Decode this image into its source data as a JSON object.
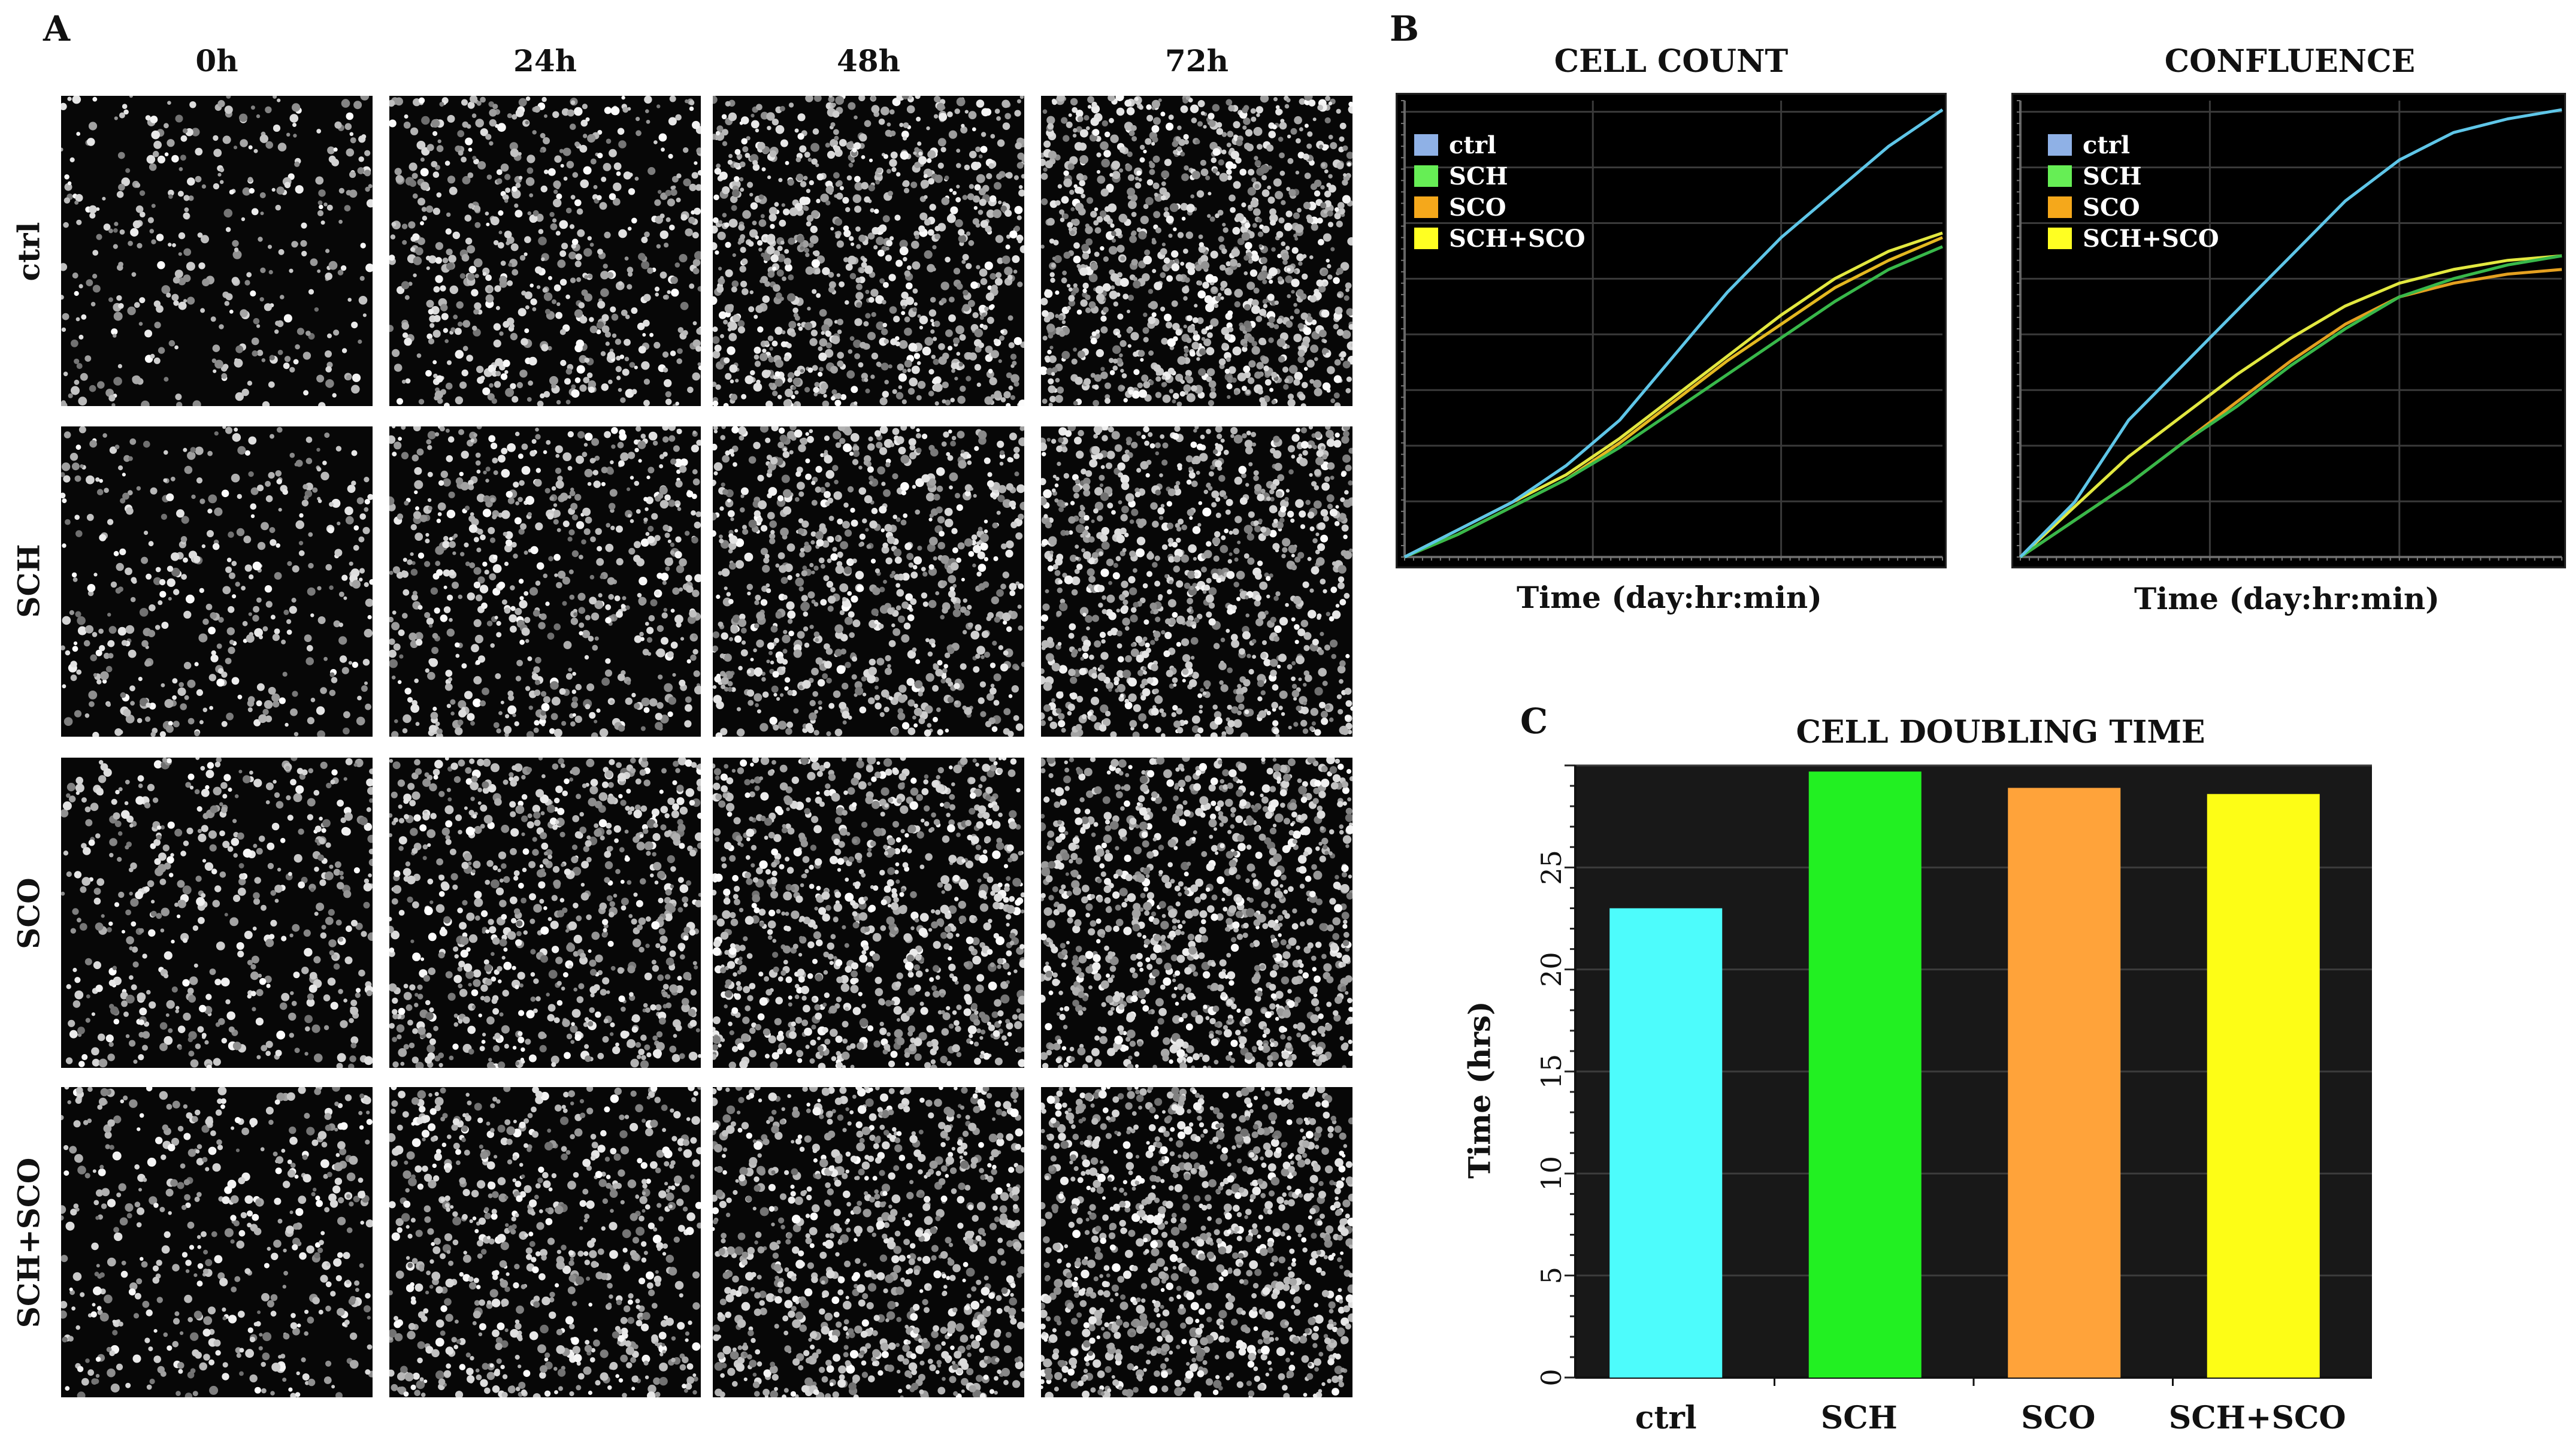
{
  "panel_letters": {
    "a": "A",
    "b": "B",
    "c": "C"
  },
  "micrograph_grid": {
    "columns": [
      "0h",
      "24h",
      "48h",
      "72h"
    ],
    "rows": [
      "ctrl",
      "SCH",
      "SCO",
      "SCH+SCO"
    ],
    "cell_density": [
      [
        0.18,
        0.42,
        0.7,
        0.85
      ],
      [
        0.22,
        0.45,
        0.6,
        0.72
      ],
      [
        0.3,
        0.55,
        0.7,
        0.82
      ],
      [
        0.28,
        0.5,
        0.68,
        0.8
      ]
    ]
  },
  "legend": [
    {
      "name": "ctrl",
      "color": "#8fb1e6"
    },
    {
      "name": "SCH",
      "color": "#66ee55"
    },
    {
      "name": "SCO",
      "color": "#f5a81b"
    },
    {
      "name": "SCH+SCO",
      "color": "#ffff22"
    }
  ],
  "chart_data": [
    {
      "type": "line",
      "title": "CELL COUNT",
      "xlabel": "Time (day:hr:min)",
      "ylabel": "",
      "x": [
        0,
        0.1,
        0.2,
        0.3,
        0.4,
        0.5,
        0.6,
        0.7,
        0.8,
        0.9,
        1.0
      ],
      "xlim": [
        0,
        1
      ],
      "ylim": [
        0,
        1
      ],
      "series": [
        {
          "name": "ctrl",
          "color": "#5fc6e8",
          "values": [
            0,
            0.06,
            0.12,
            0.2,
            0.3,
            0.44,
            0.58,
            0.7,
            0.8,
            0.9,
            0.98
          ]
        },
        {
          "name": "SCH",
          "color": "#38b84a",
          "values": [
            0,
            0.05,
            0.11,
            0.17,
            0.24,
            0.32,
            0.4,
            0.48,
            0.56,
            0.63,
            0.68
          ]
        },
        {
          "name": "SCO",
          "color": "#e4b820",
          "values": [
            0,
            0.05,
            0.11,
            0.17,
            0.25,
            0.34,
            0.43,
            0.51,
            0.59,
            0.65,
            0.7
          ]
        },
        {
          "name": "SCH+SCO",
          "color": "#e2e840",
          "values": [
            0,
            0.06,
            0.12,
            0.18,
            0.26,
            0.35,
            0.44,
            0.53,
            0.61,
            0.67,
            0.71
          ]
        }
      ]
    },
    {
      "type": "line",
      "title": "CONFLUENCE",
      "xlabel": "Time (day:hr:min)",
      "ylabel": "",
      "x": [
        0,
        0.1,
        0.2,
        0.3,
        0.4,
        0.5,
        0.6,
        0.7,
        0.8,
        0.9,
        1.0
      ],
      "xlim": [
        0,
        1
      ],
      "ylim": [
        0,
        1
      ],
      "series": [
        {
          "name": "ctrl",
          "color": "#5fc6e8",
          "values": [
            0,
            0.12,
            0.3,
            0.42,
            0.54,
            0.66,
            0.78,
            0.87,
            0.93,
            0.96,
            0.98
          ]
        },
        {
          "name": "SCH",
          "color": "#38b84a",
          "values": [
            0,
            0.08,
            0.16,
            0.25,
            0.33,
            0.42,
            0.5,
            0.57,
            0.61,
            0.64,
            0.66
          ]
        },
        {
          "name": "SCO",
          "color": "#e4a020",
          "values": [
            0,
            0.08,
            0.16,
            0.25,
            0.34,
            0.43,
            0.51,
            0.57,
            0.6,
            0.62,
            0.63
          ]
        },
        {
          "name": "SCH+SCO",
          "color": "#e2e840",
          "values": [
            0,
            0.11,
            0.22,
            0.31,
            0.4,
            0.48,
            0.55,
            0.6,
            0.63,
            0.65,
            0.66
          ]
        }
      ]
    },
    {
      "type": "bar",
      "title": "CELL DOUBLING TIME",
      "xlabel": "",
      "ylabel": "Time (hrs)",
      "categories": [
        "ctrl",
        "SCH",
        "SCO",
        "SCH+SCO"
      ],
      "values": [
        23.0,
        29.7,
        28.9,
        28.6
      ],
      "colors": [
        "#4dfcfc",
        "#22f022",
        "#ffa33a",
        "#fdfd16"
      ],
      "yticks": [
        0,
        5,
        10,
        15,
        20,
        25
      ],
      "ylim": [
        0,
        30
      ]
    }
  ]
}
